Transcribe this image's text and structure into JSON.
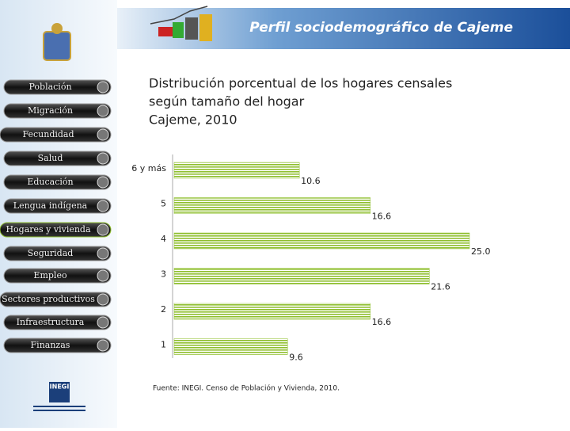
{
  "header": {
    "title": "Perfil sociodemográfico de Cajeme"
  },
  "nav": [
    "Población",
    "Migración",
    "Fecundidad",
    "Salud",
    "Educación",
    "Lengua indígena",
    "Hogares y vivienda",
    "Seguridad",
    "Empleo",
    "Sectores productivos",
    "Infraestructura",
    "Finanzas"
  ],
  "logo": "INEGI",
  "chart_data": {
    "type": "hbar",
    "title": [
      "Distribución porcentual de los hogares censales",
      "según tamaño del hogar",
      "Cajeme, 2010"
    ],
    "categories": [
      "6 y más",
      "5",
      "4",
      "3",
      "2",
      "1"
    ],
    "values": [
      10.6,
      16.6,
      25.0,
      21.6,
      16.6,
      9.6
    ],
    "value_labels": [
      "10.6",
      "16.6",
      "25.0",
      "21.6",
      "16.6",
      "9.6"
    ],
    "color": "#8fbf2f",
    "xlim": [
      0,
      25
    ]
  },
  "source": "Fuente: INEGI. Censo de Población y Vivienda, 2010."
}
